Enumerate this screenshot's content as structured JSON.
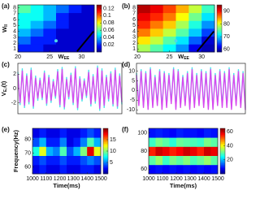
{
  "chart_data": [
    {
      "type": "heatmap",
      "label": "(a)",
      "colormap": "jet",
      "xlabel": "W",
      "xlabel_sub": "EE",
      "ylabel": "W",
      "ylabel_sub": "II",
      "xlim": [
        20,
        32
      ],
      "ylim": [
        0.5,
        8.5
      ],
      "xticks": [
        20,
        25,
        30
      ],
      "yticks": [
        1,
        2,
        3,
        4,
        5,
        6,
        7,
        8
      ],
      "zlim": [
        0,
        0.13
      ],
      "cbticks": [
        0.02,
        0.04,
        0.06,
        0.08,
        0.1,
        0.12
      ],
      "z": [
        [
          0.02,
          0.02,
          0.01,
          0.01,
          0.01,
          0.01
        ],
        [
          0.03,
          0.02,
          0.02,
          0.01,
          0.01,
          0.01
        ],
        [
          0.04,
          0.03,
          0.02,
          0.01,
          0.01,
          0.01
        ],
        [
          0.05,
          0.04,
          0.03,
          0.02,
          0.01,
          0.01
        ],
        [
          0.05,
          0.05,
          0.04,
          0.02,
          0.01,
          0.01
        ],
        [
          0.06,
          0.05,
          0.04,
          0.03,
          0.02,
          0.01
        ]
      ],
      "markers": [
        {
          "x": 26,
          "y": 2.4,
          "color": "#4dd8e8"
        }
      ],
      "segment": {
        "x": [
          29.3,
          31.9
        ],
        "y": [
          0.6,
          4
        ],
        "color": "#000000"
      }
    },
    {
      "type": "heatmap",
      "label": "(b)",
      "colormap": "jet",
      "xlabel": "W",
      "xlabel_sub": "EE",
      "xlim": [
        20,
        32
      ],
      "ylim": [
        0.5,
        8.5
      ],
      "xticks": [
        20,
        25,
        30
      ],
      "yticks": [
        1,
        2,
        3,
        4,
        5,
        6,
        7,
        8
      ],
      "zlim": [
        58,
        95
      ],
      "cbticks": [
        60,
        70,
        80,
        90
      ],
      "z": [
        [
          78,
          75,
          72,
          68,
          62,
          60
        ],
        [
          82,
          79,
          75,
          71,
          66,
          61
        ],
        [
          86,
          83,
          79,
          75,
          70,
          65
        ],
        [
          89,
          86,
          83,
          78,
          73,
          68
        ],
        [
          91,
          89,
          86,
          81,
          76,
          71
        ],
        [
          93,
          91,
          88,
          84,
          79,
          74
        ]
      ],
      "markers": [
        {
          "x": 26,
          "y": 2.4,
          "color": "#4dd8e8"
        }
      ],
      "segment": {
        "x": [
          29.3,
          31.9
        ],
        "y": [
          0.6,
          4
        ],
        "color": "#000000"
      }
    },
    {
      "type": "line",
      "label": "(c)",
      "ylabel": "V",
      "ylabel_sub": "E,i",
      "ylabel_suffix": "(t)",
      "ylim": [
        -3.5,
        3.5
      ],
      "yticks": [
        -2,
        0,
        2
      ],
      "series": [
        {
          "name": "cyan",
          "color": "#4fe3ea",
          "values": [
            2.3,
            -2.3,
            2.8,
            -2.7,
            2.1,
            -2.2,
            2.9,
            -2.8,
            1.8,
            -1.7,
            1.5,
            -1.6,
            2.5,
            -2.4,
            1.9,
            -2.0,
            1.3,
            -1.4,
            2.7,
            -2.6,
            3.0,
            -2.9,
            1.6,
            -1.5,
            2.2,
            -2.3,
            3.1,
            -3.0,
            1.7,
            -1.8,
            1.4,
            -1.3,
            2.6,
            -2.5,
            2.0,
            -2.1,
            3.2,
            -3.1,
            2.8,
            -2.7,
            1.9,
            -1.8,
            2.4,
            -2.5,
            2.9,
            -2.8,
            2.1,
            -2.2
          ]
        },
        {
          "name": "magenta",
          "color": "#d946ef",
          "values": [
            2,
            -2,
            2.5,
            -2.4,
            1.8,
            -1.9,
            2.6,
            -2.5,
            1.5,
            -1.4,
            1.2,
            -1.3,
            2.2,
            -2.1,
            1.6,
            -1.7,
            1.0,
            -1.1,
            2.4,
            -2.3,
            2.7,
            -2.6,
            1.3,
            -1.2,
            1.9,
            -2.0,
            2.8,
            -2.7,
            1.4,
            -1.5,
            1.1,
            -1.0,
            2.3,
            -2.2,
            1.7,
            -1.8,
            2.9,
            -2.8,
            2.5,
            -2.4,
            1.6,
            -1.5,
            2.1,
            -2.2,
            2.6,
            -2.5,
            1.8,
            -1.9
          ]
        }
      ]
    },
    {
      "type": "line",
      "label": "(d)",
      "ylim": [
        -12,
        14
      ],
      "yticks": [
        -10,
        -5,
        0,
        5,
        10
      ],
      "series": [
        {
          "name": "cyan",
          "color": "#4fe3ea",
          "values": [
            9,
            -7,
            11,
            -8,
            10,
            -9,
            12,
            -8,
            8,
            -7,
            11,
            -9,
            10,
            -8,
            9,
            -6,
            12,
            -9,
            11,
            -8,
            8,
            -7,
            10,
            -9,
            12,
            -8,
            9,
            -7,
            11,
            -8,
            10,
            -9,
            12,
            -9,
            9,
            -7,
            11,
            -8,
            10,
            -8,
            12,
            -9,
            9,
            -7,
            11,
            -8,
            10,
            -9
          ]
        },
        {
          "name": "magenta",
          "color": "#d946ef",
          "values": [
            8,
            -8,
            10,
            -9,
            9,
            -10,
            11,
            -9,
            7,
            -8,
            10,
            -10,
            9,
            -9,
            8,
            -7,
            11,
            -10,
            10,
            -9,
            7,
            -8,
            9,
            -10,
            11,
            -9,
            8,
            -8,
            10,
            -9,
            9,
            -10,
            11,
            -10,
            8,
            -8,
            10,
            -9,
            9,
            -9,
            11,
            -10,
            8,
            -8,
            10,
            -9,
            9,
            -10
          ]
        }
      ]
    },
    {
      "type": "heatmap",
      "label": "(e)",
      "colormap": "jet",
      "xlabel": "Time(ms)",
      "ylabel": "Frequency(Hz)",
      "xlim": [
        1000,
        1500
      ],
      "ylim": [
        55,
        88
      ],
      "xticks": [
        1000,
        1100,
        1200,
        1300,
        1400,
        1500
      ],
      "yticks": [
        60,
        70,
        80
      ],
      "zlim": [
        0,
        20
      ],
      "cbticks": [
        5,
        10,
        15
      ],
      "z": [
        [
          2,
          3,
          2,
          2,
          3,
          2,
          2,
          3,
          3,
          2
        ],
        [
          3,
          4,
          3,
          3,
          4,
          3,
          3,
          4,
          5,
          4
        ],
        [
          8,
          12,
          6,
          5,
          9,
          4,
          6,
          10,
          18,
          12
        ],
        [
          4,
          6,
          3,
          3,
          5,
          2,
          3,
          5,
          9,
          6
        ],
        [
          2,
          3,
          2,
          2,
          3,
          2,
          2,
          3,
          4,
          3
        ]
      ]
    },
    {
      "type": "heatmap",
      "label": "(f)",
      "colormap": "jet",
      "xlabel": "Time(ms)",
      "xlim": [
        1000,
        1500
      ],
      "ylim": [
        55,
        105
      ],
      "xticks": [
        1000,
        1100,
        1200,
        1300,
        1400,
        1500
      ],
      "yticks": [
        60,
        80,
        100
      ],
      "zlim": [
        0,
        65
      ],
      "cbticks": [
        20,
        40,
        60
      ],
      "z": [
        [
          8,
          9,
          8,
          9,
          8,
          9,
          8,
          9,
          8,
          9
        ],
        [
          30,
          34,
          28,
          32,
          30,
          33,
          29,
          31,
          34,
          30
        ],
        [
          55,
          60,
          58,
          55,
          57,
          60,
          58,
          55,
          60,
          58
        ],
        [
          28,
          32,
          30,
          27,
          31,
          30,
          29,
          28,
          32,
          30
        ],
        [
          9,
          10,
          9,
          8,
          10,
          9,
          9,
          8,
          10,
          9
        ]
      ]
    }
  ]
}
